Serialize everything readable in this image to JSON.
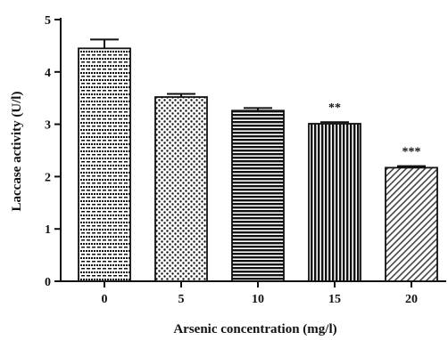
{
  "chart_data": {
    "type": "bar",
    "title": "",
    "xlabel": "Arsenic concentration (mg/l)",
    "ylabel": "Laccase activity (U/l)",
    "categories": [
      "0",
      "5",
      "10",
      "15",
      "20"
    ],
    "values": [
      4.45,
      3.52,
      3.26,
      3.01,
      2.17
    ],
    "error": [
      0.17,
      0.06,
      0.05,
      0.03,
      0.03
    ],
    "significance": [
      "",
      "",
      "",
      "**",
      "***"
    ],
    "patterns": [
      "dense-dots-dashes",
      "sparse-dots",
      "horizontal-stripes",
      "vertical-stripes",
      "diagonal-hatch"
    ],
    "ylim": [
      0,
      5
    ],
    "yticks": [
      "0",
      "1",
      "2",
      "3",
      "4",
      "5"
    ],
    "grid": false,
    "legend": "none"
  }
}
